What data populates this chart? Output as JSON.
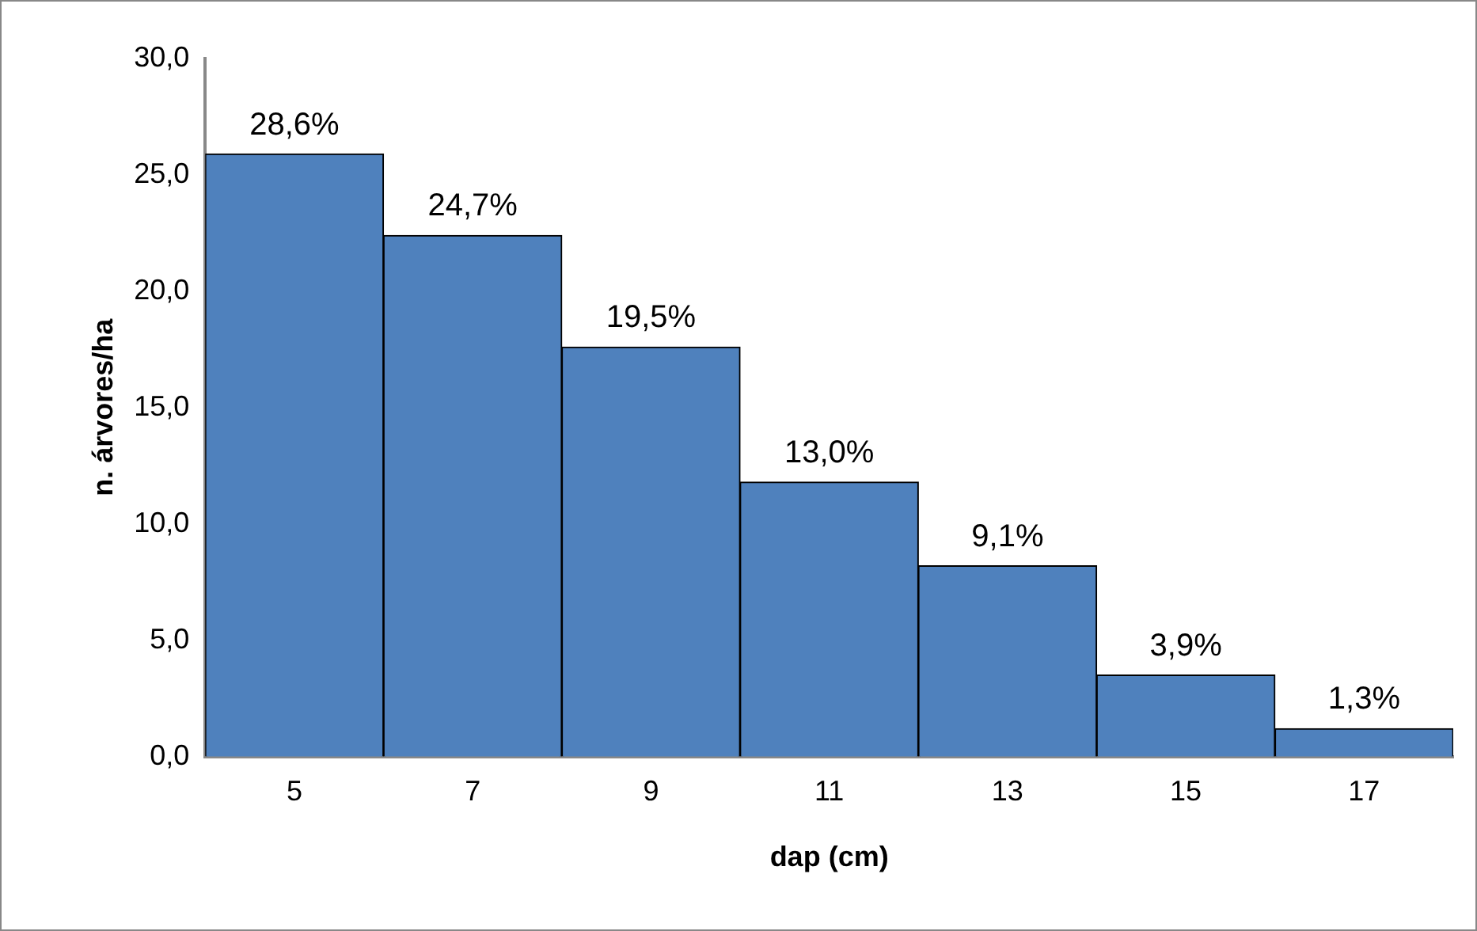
{
  "chart_data": {
    "type": "bar",
    "xlabel": "dap (cm)",
    "ylabel": "n. árvores/ha",
    "categories": [
      "5",
      "7",
      "9",
      "11",
      "13",
      "15",
      "17"
    ],
    "series": [
      {
        "color": "#4f81bd",
        "values": [
          25.9,
          22.4,
          17.6,
          11.8,
          8.2,
          3.5,
          1.2
        ]
      }
    ],
    "annotations": [
      {
        "text": "28,6%",
        "x": "5",
        "y": 25.9
      },
      {
        "text": "24,7%",
        "x": "7",
        "y": 22.4
      },
      {
        "text": "19,5%",
        "x": "9",
        "y": 17.6
      },
      {
        "text": "13,0%",
        "x": "11",
        "y": 11.8
      },
      {
        "text": "9,1%",
        "x": "13",
        "y": 8.2
      },
      {
        "text": "3,9%",
        "x": "15",
        "y": 3.5
      },
      {
        "text": "1,3%",
        "x": "17",
        "y": 1.2
      }
    ],
    "ylim": [
      0,
      30
    ],
    "yticks": [
      {
        "value": 0,
        "label": "0,0"
      },
      {
        "value": 5,
        "label": "5,0"
      },
      {
        "value": 10,
        "label": "10,0"
      },
      {
        "value": 15,
        "label": "15,0"
      },
      {
        "value": 20,
        "label": "20,0"
      },
      {
        "value": 25,
        "label": "25,0"
      },
      {
        "value": 30,
        "label": "30,0"
      }
    ],
    "grid": false,
    "legend": false
  }
}
